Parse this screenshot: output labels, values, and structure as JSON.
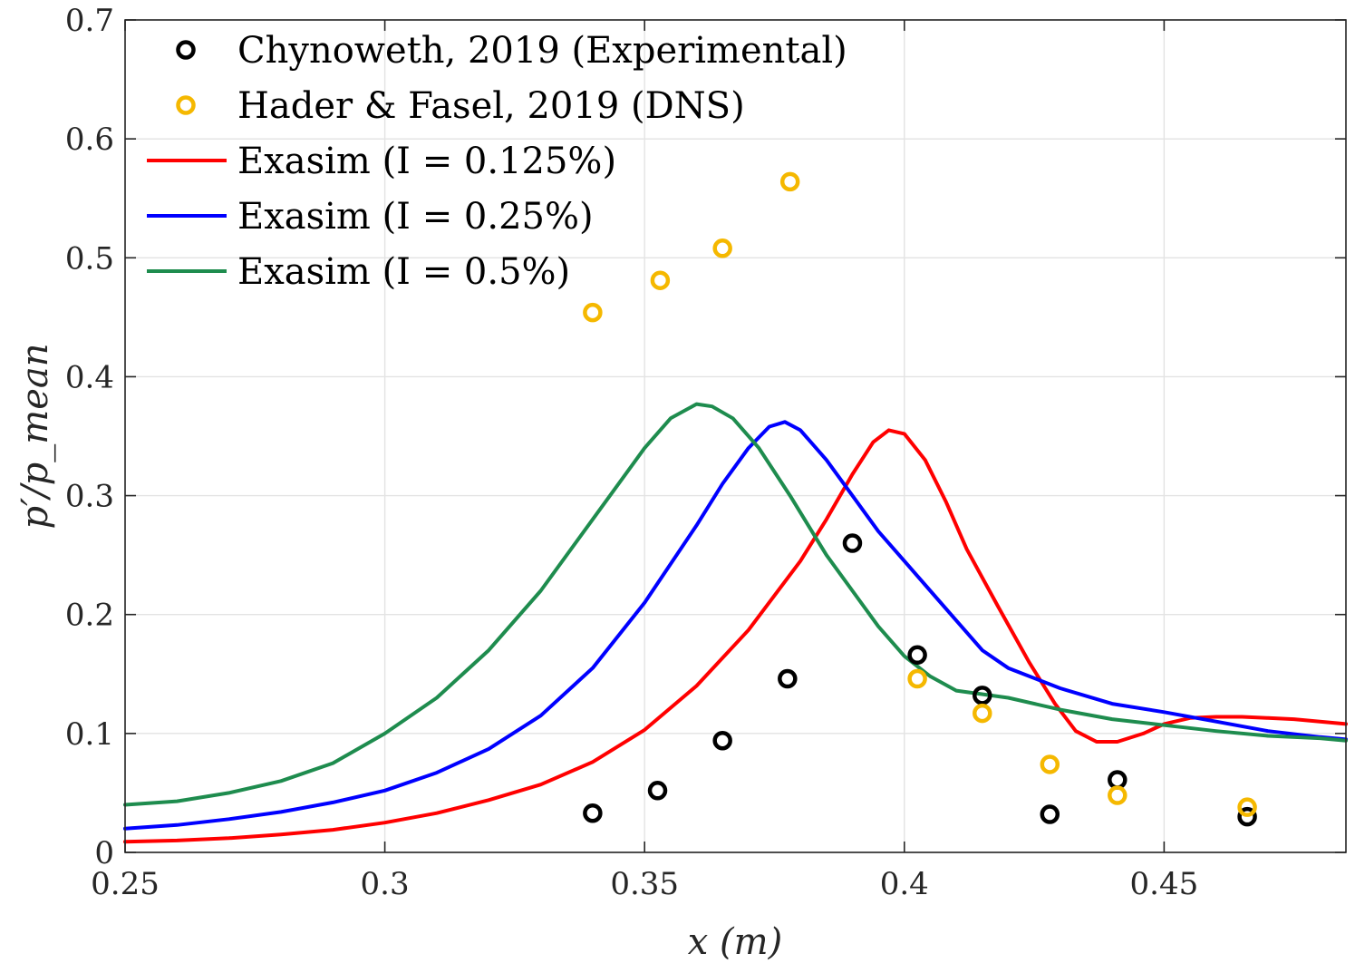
{
  "chart_data": {
    "type": "line",
    "title": "",
    "xlabel": "x (m)",
    "ylabel": "p′/p_mean",
    "xlim": [
      0.25,
      0.485
    ],
    "ylim": [
      0,
      0.7
    ],
    "grid": true,
    "xticks": [
      "0.25",
      "0.3",
      "0.35",
      "0.4",
      "0.45"
    ],
    "xtick_values": [
      0.25,
      0.3,
      0.35,
      0.4,
      0.45
    ],
    "yticks": [
      "0",
      "0.1",
      "0.2",
      "0.3",
      "0.4",
      "0.5",
      "0.6",
      "0.7"
    ],
    "ytick_values": [
      0,
      0.1,
      0.2,
      0.3,
      0.4,
      0.5,
      0.6,
      0.7
    ],
    "legend_position": "top-left",
    "series": [
      {
        "name": "Chynoweth, 2019 (Experimental)",
        "kind": "markers",
        "color": "#000000",
        "points": [
          [
            0.34,
            0.033
          ],
          [
            0.3525,
            0.052
          ],
          [
            0.365,
            0.094
          ],
          [
            0.3775,
            0.146
          ],
          [
            0.39,
            0.26
          ],
          [
            0.4025,
            0.166
          ],
          [
            0.415,
            0.132
          ],
          [
            0.428,
            0.032
          ],
          [
            0.441,
            0.061
          ],
          [
            0.466,
            0.03
          ]
        ]
      },
      {
        "name": "Hader & Fasel, 2019 (DNS)",
        "kind": "markers",
        "color": "#F5B800",
        "points": [
          [
            0.34,
            0.454
          ],
          [
            0.353,
            0.481
          ],
          [
            0.365,
            0.508
          ],
          [
            0.378,
            0.564
          ],
          [
            0.4025,
            0.146
          ],
          [
            0.415,
            0.117
          ],
          [
            0.428,
            0.074
          ],
          [
            0.441,
            0.048
          ],
          [
            0.466,
            0.038
          ]
        ]
      },
      {
        "name": "Exasim (I = 0.125%)",
        "kind": "line",
        "color": "#FF0000",
        "points": [
          [
            0.25,
            0.009
          ],
          [
            0.26,
            0.01
          ],
          [
            0.27,
            0.012
          ],
          [
            0.28,
            0.015
          ],
          [
            0.29,
            0.019
          ],
          [
            0.3,
            0.025
          ],
          [
            0.31,
            0.033
          ],
          [
            0.32,
            0.044
          ],
          [
            0.33,
            0.057
          ],
          [
            0.34,
            0.076
          ],
          [
            0.35,
            0.103
          ],
          [
            0.36,
            0.14
          ],
          [
            0.37,
            0.187
          ],
          [
            0.38,
            0.245
          ],
          [
            0.385,
            0.28
          ],
          [
            0.39,
            0.318
          ],
          [
            0.394,
            0.345
          ],
          [
            0.397,
            0.355
          ],
          [
            0.4,
            0.352
          ],
          [
            0.404,
            0.33
          ],
          [
            0.408,
            0.295
          ],
          [
            0.412,
            0.255
          ],
          [
            0.418,
            0.207
          ],
          [
            0.424,
            0.16
          ],
          [
            0.429,
            0.125
          ],
          [
            0.433,
            0.102
          ],
          [
            0.437,
            0.093
          ],
          [
            0.441,
            0.093
          ],
          [
            0.446,
            0.1
          ],
          [
            0.45,
            0.108
          ],
          [
            0.455,
            0.113
          ],
          [
            0.46,
            0.114
          ],
          [
            0.465,
            0.114
          ],
          [
            0.47,
            0.113
          ],
          [
            0.475,
            0.112
          ],
          [
            0.48,
            0.11
          ],
          [
            0.485,
            0.108
          ]
        ]
      },
      {
        "name": "Exasim (I = 0.25%)",
        "kind": "line",
        "color": "#0000FF",
        "points": [
          [
            0.25,
            0.02
          ],
          [
            0.26,
            0.023
          ],
          [
            0.27,
            0.028
          ],
          [
            0.28,
            0.034
          ],
          [
            0.29,
            0.042
          ],
          [
            0.3,
            0.052
          ],
          [
            0.31,
            0.067
          ],
          [
            0.32,
            0.087
          ],
          [
            0.33,
            0.115
          ],
          [
            0.34,
            0.155
          ],
          [
            0.35,
            0.21
          ],
          [
            0.36,
            0.275
          ],
          [
            0.365,
            0.31
          ],
          [
            0.37,
            0.34
          ],
          [
            0.374,
            0.358
          ],
          [
            0.377,
            0.362
          ],
          [
            0.38,
            0.355
          ],
          [
            0.385,
            0.33
          ],
          [
            0.39,
            0.3
          ],
          [
            0.395,
            0.27
          ],
          [
            0.4,
            0.245
          ],
          [
            0.405,
            0.22
          ],
          [
            0.41,
            0.195
          ],
          [
            0.415,
            0.17
          ],
          [
            0.42,
            0.155
          ],
          [
            0.43,
            0.138
          ],
          [
            0.44,
            0.125
          ],
          [
            0.45,
            0.118
          ],
          [
            0.46,
            0.11
          ],
          [
            0.47,
            0.102
          ],
          [
            0.48,
            0.097
          ],
          [
            0.485,
            0.095
          ]
        ]
      },
      {
        "name": "Exasim (I = 0.5%)",
        "kind": "line",
        "color": "#1E8C4E",
        "points": [
          [
            0.25,
            0.04
          ],
          [
            0.26,
            0.043
          ],
          [
            0.27,
            0.05
          ],
          [
            0.28,
            0.06
          ],
          [
            0.29,
            0.075
          ],
          [
            0.3,
            0.1
          ],
          [
            0.31,
            0.13
          ],
          [
            0.32,
            0.17
          ],
          [
            0.33,
            0.22
          ],
          [
            0.34,
            0.28
          ],
          [
            0.35,
            0.34
          ],
          [
            0.355,
            0.365
          ],
          [
            0.36,
            0.377
          ],
          [
            0.363,
            0.375
          ],
          [
            0.367,
            0.365
          ],
          [
            0.372,
            0.34
          ],
          [
            0.378,
            0.3
          ],
          [
            0.385,
            0.25
          ],
          [
            0.39,
            0.22
          ],
          [
            0.395,
            0.19
          ],
          [
            0.4,
            0.165
          ],
          [
            0.405,
            0.148
          ],
          [
            0.41,
            0.136
          ],
          [
            0.42,
            0.13
          ],
          [
            0.43,
            0.12
          ],
          [
            0.44,
            0.112
          ],
          [
            0.45,
            0.107
          ],
          [
            0.46,
            0.102
          ],
          [
            0.47,
            0.098
          ],
          [
            0.48,
            0.096
          ],
          [
            0.485,
            0.094
          ]
        ]
      }
    ]
  }
}
